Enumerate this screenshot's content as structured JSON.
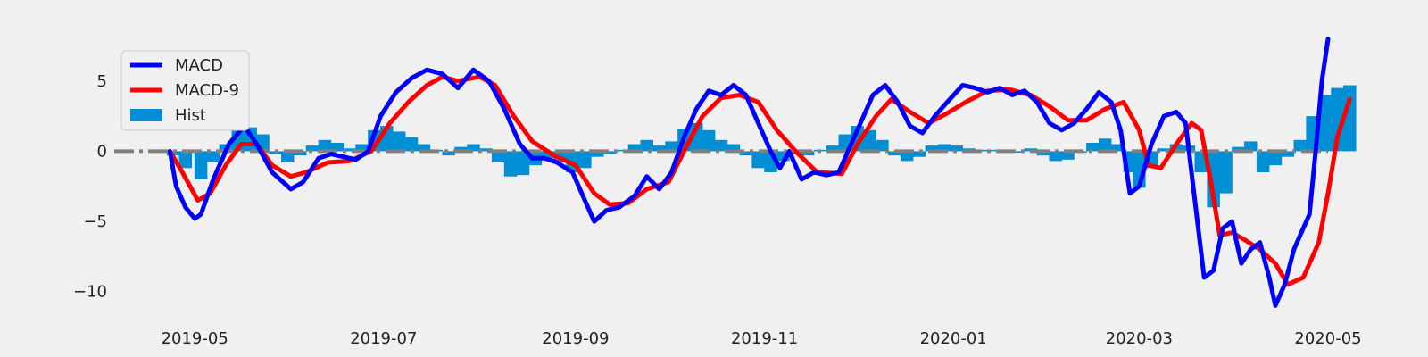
{
  "chart_data": {
    "type": "line",
    "title": "",
    "xlabel": "",
    "ylabel": "",
    "x_range": [
      "2019-04-05",
      "2020-05-01"
    ],
    "ylim": [
      -11.8,
      9.5
    ],
    "x_ticks": [
      {
        "date": "2019-05-01",
        "label": "2019-05"
      },
      {
        "date": "2019-07-01",
        "label": "2019-07"
      },
      {
        "date": "2019-09-01",
        "label": "2019-09"
      },
      {
        "date": "2019-11-01",
        "label": "2019-11"
      },
      {
        "date": "2020-01-01",
        "label": "2020-01"
      },
      {
        "date": "2020-03-01",
        "label": "2020-03"
      },
      {
        "date": "2020-05-01",
        "label": "2020-05"
      }
    ],
    "y_ticks": [
      {
        "value": 5,
        "label": "5"
      },
      {
        "value": 0,
        "label": "0"
      },
      {
        "value": -5,
        "label": "−5"
      },
      {
        "value": -10,
        "label": "−10"
      }
    ],
    "grid": false,
    "zero_line": {
      "value": 0,
      "color": "#808080",
      "style": "dashdot"
    },
    "legend": {
      "position": "upper-left",
      "entries": [
        "MACD",
        "MACD-9",
        "Hist"
      ]
    },
    "colors": {
      "MACD": "#0000ff",
      "MACD-9": "#ff0000",
      "Hist": "#008fd5",
      "background": "#f0f0f0"
    },
    "series": [
      {
        "name": "MACD",
        "type": "line",
        "points": [
          [
            "2019-04-23",
            0.0
          ],
          [
            "2019-04-25",
            -2.5
          ],
          [
            "2019-04-28",
            -4.0
          ],
          [
            "2019-05-01",
            -4.8
          ],
          [
            "2019-05-03",
            -4.5
          ],
          [
            "2019-05-07",
            -2.0
          ],
          [
            "2019-05-12",
            0.5
          ],
          [
            "2019-05-17",
            1.8
          ],
          [
            "2019-05-21",
            0.5
          ],
          [
            "2019-05-26",
            -1.5
          ],
          [
            "2019-06-01",
            -2.7
          ],
          [
            "2019-06-05",
            -2.2
          ],
          [
            "2019-06-10",
            -0.5
          ],
          [
            "2019-06-14",
            -0.2
          ],
          [
            "2019-06-22",
            -0.6
          ],
          [
            "2019-06-26",
            0.0
          ],
          [
            "2019-06-30",
            2.5
          ],
          [
            "2019-07-05",
            4.2
          ],
          [
            "2019-07-10",
            5.2
          ],
          [
            "2019-07-15",
            5.8
          ],
          [
            "2019-07-20",
            5.5
          ],
          [
            "2019-07-25",
            4.5
          ],
          [
            "2019-07-30",
            5.8
          ],
          [
            "2019-08-04",
            5.0
          ],
          [
            "2019-08-09",
            3.0
          ],
          [
            "2019-08-14",
            0.5
          ],
          [
            "2019-08-18",
            -0.5
          ],
          [
            "2019-08-22",
            -0.5
          ],
          [
            "2019-08-26",
            -0.8
          ],
          [
            "2019-08-31",
            -1.5
          ],
          [
            "2019-09-04",
            -3.5
          ],
          [
            "2019-09-07",
            -5.0
          ],
          [
            "2019-09-11",
            -4.2
          ],
          [
            "2019-09-15",
            -4.0
          ],
          [
            "2019-09-20",
            -3.2
          ],
          [
            "2019-09-24",
            -1.8
          ],
          [
            "2019-09-28",
            -2.7
          ],
          [
            "2019-10-02",
            -1.5
          ],
          [
            "2019-10-06",
            1.0
          ],
          [
            "2019-10-10",
            3.0
          ],
          [
            "2019-10-14",
            4.3
          ],
          [
            "2019-10-18",
            4.0
          ],
          [
            "2019-10-22",
            4.7
          ],
          [
            "2019-10-26",
            4.0
          ],
          [
            "2019-10-30",
            2.0
          ],
          [
            "2019-11-03",
            0.0
          ],
          [
            "2019-11-06",
            -1.2
          ],
          [
            "2019-11-09",
            0.0
          ],
          [
            "2019-11-13",
            -2.0
          ],
          [
            "2019-11-17",
            -1.5
          ],
          [
            "2019-11-21",
            -1.7
          ],
          [
            "2019-11-25",
            -1.5
          ],
          [
            "2019-11-28",
            0.0
          ],
          [
            "2019-12-02",
            2.0
          ],
          [
            "2019-12-06",
            4.0
          ],
          [
            "2019-12-10",
            4.7
          ],
          [
            "2019-12-14",
            3.5
          ],
          [
            "2019-12-18",
            1.8
          ],
          [
            "2019-12-22",
            1.3
          ],
          [
            "2019-12-26",
            2.5
          ],
          [
            "2019-12-30",
            3.5
          ],
          [
            "2020-01-04",
            4.7
          ],
          [
            "2020-01-08",
            4.5
          ],
          [
            "2020-01-12",
            4.2
          ],
          [
            "2020-01-16",
            4.5
          ],
          [
            "2020-01-20",
            4.0
          ],
          [
            "2020-01-24",
            4.3
          ],
          [
            "2020-01-28",
            3.5
          ],
          [
            "2020-02-01",
            2.0
          ],
          [
            "2020-02-05",
            1.5
          ],
          [
            "2020-02-09",
            2.0
          ],
          [
            "2020-02-13",
            3.0
          ],
          [
            "2020-02-17",
            4.2
          ],
          [
            "2020-02-21",
            3.5
          ],
          [
            "2020-02-24",
            1.5
          ],
          [
            "2020-02-27",
            -3.0
          ],
          [
            "2020-03-01",
            -2.5
          ],
          [
            "2020-03-05",
            0.5
          ],
          [
            "2020-03-09",
            2.5
          ],
          [
            "2020-03-13",
            2.8
          ],
          [
            "2020-03-16",
            2.0
          ],
          [
            "2020-03-19",
            -3.5
          ],
          [
            "2020-03-22",
            -9.0
          ],
          [
            "2020-03-25",
            -8.5
          ],
          [
            "2020-03-28",
            -5.5
          ],
          [
            "2020-03-31",
            -5.0
          ],
          [
            "2020-04-03",
            -8.0
          ],
          [
            "2020-04-06",
            -7.0
          ],
          [
            "2020-04-09",
            -6.5
          ],
          [
            "2020-04-12",
            -9.0
          ],
          [
            "2020-04-14",
            -11.0
          ],
          [
            "2020-04-17",
            -9.5
          ],
          [
            "2020-04-20",
            -7.0
          ],
          [
            "2020-04-23",
            -5.5
          ],
          [
            "2020-04-25",
            -4.5
          ],
          [
            "2020-04-27",
            0.0
          ],
          [
            "2020-04-29",
            5.0
          ],
          [
            "2020-05-01",
            8.0
          ]
        ]
      },
      {
        "name": "MACD-9",
        "type": "line",
        "points": [
          [
            "2019-04-23",
            0.0
          ],
          [
            "2019-04-27",
            -1.5
          ],
          [
            "2019-05-02",
            -3.5
          ],
          [
            "2019-05-06",
            -3.0
          ],
          [
            "2019-05-11",
            -1.0
          ],
          [
            "2019-05-16",
            0.5
          ],
          [
            "2019-05-21",
            0.5
          ],
          [
            "2019-05-26",
            -1.0
          ],
          [
            "2019-06-01",
            -1.8
          ],
          [
            "2019-06-06",
            -1.5
          ],
          [
            "2019-06-13",
            -0.8
          ],
          [
            "2019-06-20",
            -0.7
          ],
          [
            "2019-06-27",
            0.0
          ],
          [
            "2019-07-03",
            2.0
          ],
          [
            "2019-07-09",
            3.5
          ],
          [
            "2019-07-15",
            4.7
          ],
          [
            "2019-07-20",
            5.3
          ],
          [
            "2019-07-25",
            5.0
          ],
          [
            "2019-08-01",
            5.3
          ],
          [
            "2019-08-06",
            4.7
          ],
          [
            "2019-08-12",
            2.5
          ],
          [
            "2019-08-18",
            0.7
          ],
          [
            "2019-08-25",
            -0.3
          ],
          [
            "2019-09-01",
            -1.0
          ],
          [
            "2019-09-07",
            -3.0
          ],
          [
            "2019-09-12",
            -3.8
          ],
          [
            "2019-09-18",
            -3.7
          ],
          [
            "2019-09-24",
            -2.7
          ],
          [
            "2019-10-01",
            -2.2
          ],
          [
            "2019-10-06",
            0.0
          ],
          [
            "2019-10-12",
            2.5
          ],
          [
            "2019-10-18",
            3.8
          ],
          [
            "2019-10-24",
            4.0
          ],
          [
            "2019-10-30",
            3.5
          ],
          [
            "2019-11-05",
            1.5
          ],
          [
            "2019-11-11",
            0.0
          ],
          [
            "2019-11-18",
            -1.5
          ],
          [
            "2019-11-26",
            -1.6
          ],
          [
            "2019-12-01",
            0.5
          ],
          [
            "2019-12-07",
            2.5
          ],
          [
            "2019-12-12",
            3.7
          ],
          [
            "2019-12-18",
            2.8
          ],
          [
            "2019-12-24",
            2.0
          ],
          [
            "2019-12-30",
            2.7
          ],
          [
            "2020-01-05",
            3.5
          ],
          [
            "2020-01-12",
            4.3
          ],
          [
            "2020-01-19",
            4.4
          ],
          [
            "2020-01-26",
            4.0
          ],
          [
            "2020-02-01",
            3.2
          ],
          [
            "2020-02-07",
            2.2
          ],
          [
            "2020-02-13",
            2.2
          ],
          [
            "2020-02-19",
            3.0
          ],
          [
            "2020-02-25",
            3.5
          ],
          [
            "2020-03-01",
            1.5
          ],
          [
            "2020-03-04",
            -1.0
          ],
          [
            "2020-03-08",
            -1.2
          ],
          [
            "2020-03-13",
            0.5
          ],
          [
            "2020-03-18",
            2.0
          ],
          [
            "2020-03-21",
            1.5
          ],
          [
            "2020-03-24",
            -2.0
          ],
          [
            "2020-03-27",
            -6.0
          ],
          [
            "2020-03-31",
            -5.8
          ],
          [
            "2020-04-04",
            -6.3
          ],
          [
            "2020-04-09",
            -7.0
          ],
          [
            "2020-04-14",
            -8.0
          ],
          [
            "2020-04-18",
            -9.5
          ],
          [
            "2020-04-23",
            -9.0
          ],
          [
            "2020-04-28",
            -6.5
          ],
          [
            "2020-05-01",
            -3.0
          ],
          [
            "2020-05-04",
            1.0
          ],
          [
            "2020-05-08",
            3.7
          ]
        ]
      },
      {
        "name": "Hist",
        "type": "bar",
        "points": [
          [
            "2019-04-24",
            -0.3
          ],
          [
            "2019-04-28",
            -1.2
          ],
          [
            "2019-05-03",
            -2.0
          ],
          [
            "2019-05-07",
            -0.8
          ],
          [
            "2019-05-11",
            0.5
          ],
          [
            "2019-05-15",
            1.5
          ],
          [
            "2019-05-19",
            1.7
          ],
          [
            "2019-05-23",
            1.2
          ],
          [
            "2019-05-27",
            -0.2
          ],
          [
            "2019-05-31",
            -0.8
          ],
          [
            "2019-06-04",
            -0.3
          ],
          [
            "2019-06-08",
            0.4
          ],
          [
            "2019-06-12",
            0.8
          ],
          [
            "2019-06-16",
            0.6
          ],
          [
            "2019-06-20",
            0.2
          ],
          [
            "2019-06-24",
            0.5
          ],
          [
            "2019-06-28",
            1.5
          ],
          [
            "2019-07-02",
            1.8
          ],
          [
            "2019-07-06",
            1.4
          ],
          [
            "2019-07-10",
            1.0
          ],
          [
            "2019-07-14",
            0.5
          ],
          [
            "2019-07-18",
            0.1
          ],
          [
            "2019-07-22",
            -0.3
          ],
          [
            "2019-07-26",
            0.3
          ],
          [
            "2019-07-30",
            0.5
          ],
          [
            "2019-08-03",
            0.2
          ],
          [
            "2019-08-07",
            -0.8
          ],
          [
            "2019-08-11",
            -1.8
          ],
          [
            "2019-08-15",
            -1.7
          ],
          [
            "2019-08-19",
            -1.0
          ],
          [
            "2019-08-23",
            -0.5
          ],
          [
            "2019-08-27",
            -0.8
          ],
          [
            "2019-08-31",
            -1.5
          ],
          [
            "2019-09-04",
            -1.2
          ],
          [
            "2019-09-08",
            -0.4
          ],
          [
            "2019-09-12",
            -0.2
          ],
          [
            "2019-09-16",
            0.1
          ],
          [
            "2019-09-20",
            0.5
          ],
          [
            "2019-09-24",
            0.8
          ],
          [
            "2019-09-28",
            0.4
          ],
          [
            "2019-10-02",
            0.7
          ],
          [
            "2019-10-06",
            1.6
          ],
          [
            "2019-10-10",
            2.0
          ],
          [
            "2019-10-14",
            1.5
          ],
          [
            "2019-10-18",
            0.8
          ],
          [
            "2019-10-22",
            0.5
          ],
          [
            "2019-10-26",
            -0.3
          ],
          [
            "2019-10-30",
            -1.2
          ],
          [
            "2019-11-03",
            -1.5
          ],
          [
            "2019-11-07",
            -0.7
          ],
          [
            "2019-11-11",
            -0.2
          ],
          [
            "2019-11-15",
            -0.3
          ],
          [
            "2019-11-19",
            0.1
          ],
          [
            "2019-11-23",
            0.4
          ],
          [
            "2019-11-27",
            1.2
          ],
          [
            "2019-12-01",
            1.8
          ],
          [
            "2019-12-05",
            1.5
          ],
          [
            "2019-12-09",
            0.8
          ],
          [
            "2019-12-13",
            -0.3
          ],
          [
            "2019-12-17",
            -0.7
          ],
          [
            "2019-12-21",
            -0.4
          ],
          [
            "2019-12-25",
            0.4
          ],
          [
            "2019-12-29",
            0.5
          ],
          [
            "2020-01-02",
            0.4
          ],
          [
            "2020-01-06",
            0.2
          ],
          [
            "2020-01-10",
            0.1
          ],
          [
            "2020-01-14",
            0.1
          ],
          [
            "2020-01-18",
            -0.1
          ],
          [
            "2020-01-22",
            -0.1
          ],
          [
            "2020-01-26",
            0.2
          ],
          [
            "2020-01-30",
            -0.3
          ],
          [
            "2020-02-03",
            -0.7
          ],
          [
            "2020-02-07",
            -0.6
          ],
          [
            "2020-02-11",
            -0.1
          ],
          [
            "2020-02-15",
            0.6
          ],
          [
            "2020-02-19",
            0.9
          ],
          [
            "2020-02-23",
            0.5
          ],
          [
            "2020-02-27",
            -1.5
          ],
          [
            "2020-03-01",
            -2.6
          ],
          [
            "2020-03-05",
            -1.2
          ],
          [
            "2020-03-09",
            0.2
          ],
          [
            "2020-03-13",
            0.5
          ],
          [
            "2020-03-17",
            0.4
          ],
          [
            "2020-03-21",
            -1.5
          ],
          [
            "2020-03-25",
            -4.0
          ],
          [
            "2020-03-29",
            -3.0
          ],
          [
            "2020-04-02",
            0.3
          ],
          [
            "2020-04-06",
            0.7
          ],
          [
            "2020-04-10",
            -1.5
          ],
          [
            "2020-04-14",
            -1.0
          ],
          [
            "2020-04-18",
            -0.4
          ],
          [
            "2020-04-22",
            0.8
          ],
          [
            "2020-04-26",
            2.5
          ],
          [
            "2020-04-30",
            4.0
          ],
          [
            "2020-05-04",
            4.5
          ],
          [
            "2020-05-08",
            4.7
          ]
        ]
      }
    ]
  }
}
